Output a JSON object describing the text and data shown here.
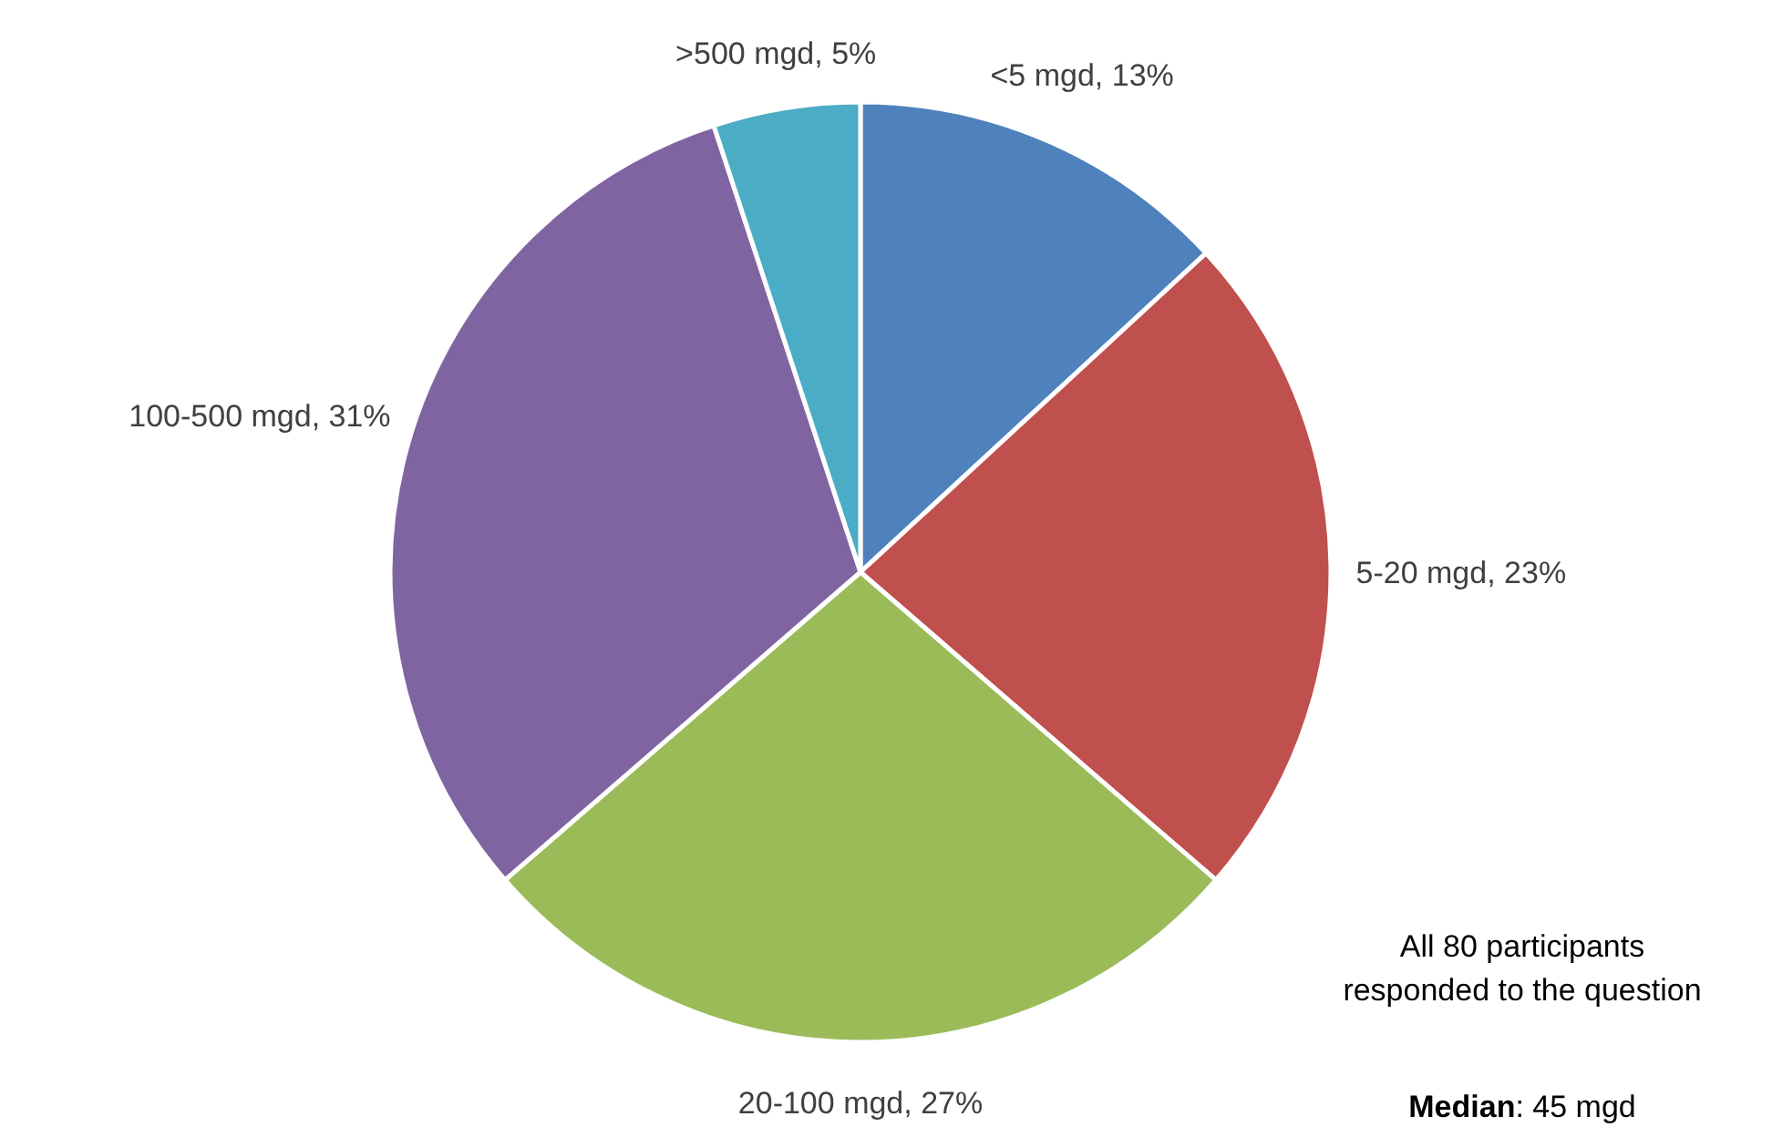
{
  "chart_data": {
    "type": "pie",
    "categories": [
      "<5 mgd",
      "5-20 mgd",
      "20-100 mgd",
      "100-500 mgd",
      ">500 mgd"
    ],
    "values": [
      13,
      23,
      27,
      31,
      5
    ],
    "value_labels": [
      "13%",
      "23%",
      "27%",
      "31%",
      "5%"
    ],
    "colors": [
      "#4f81bd",
      "#c0504d",
      "#9bbb59",
      "#8064a2",
      "#4bacc6"
    ],
    "annotations": [
      "All 80 participants\nresponded to the question",
      "Median: 45 mgd"
    ]
  }
}
